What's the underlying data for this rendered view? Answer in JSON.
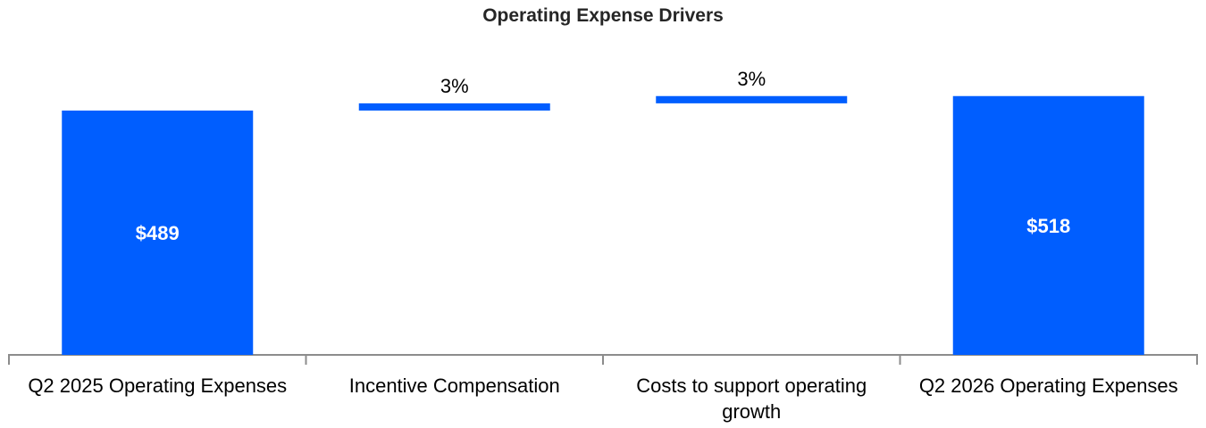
{
  "chart_data": {
    "type": "waterfall",
    "title": "Operating Expense Drivers",
    "xlabel": "",
    "ylabel": "",
    "categories": [
      "Q2 2025 Operating Expenses",
      "Incentive Compensation",
      "Costs to support operating growth",
      "Q2 2026 Operating Expenses"
    ],
    "bars": [
      {
        "category": "Q2 2025 Operating Expenses",
        "kind": "total",
        "value": 489,
        "label": "$489"
      },
      {
        "category": "Incentive Compensation",
        "kind": "delta",
        "value": 14.5,
        "label": "3%"
      },
      {
        "category": "Costs to support operating growth",
        "kind": "delta",
        "value": 14.5,
        "label": "3%"
      },
      {
        "category": "Q2 2026 Operating Expenses",
        "kind": "total",
        "value": 518,
        "label": "$518"
      }
    ],
    "ylim": [
      0,
      560
    ],
    "grid": false,
    "legend": "none",
    "colors": {
      "bar": "#005EFF",
      "axis": "#8C8C8C",
      "total_label": "#FFFFFF",
      "delta_label": "#000000"
    }
  }
}
